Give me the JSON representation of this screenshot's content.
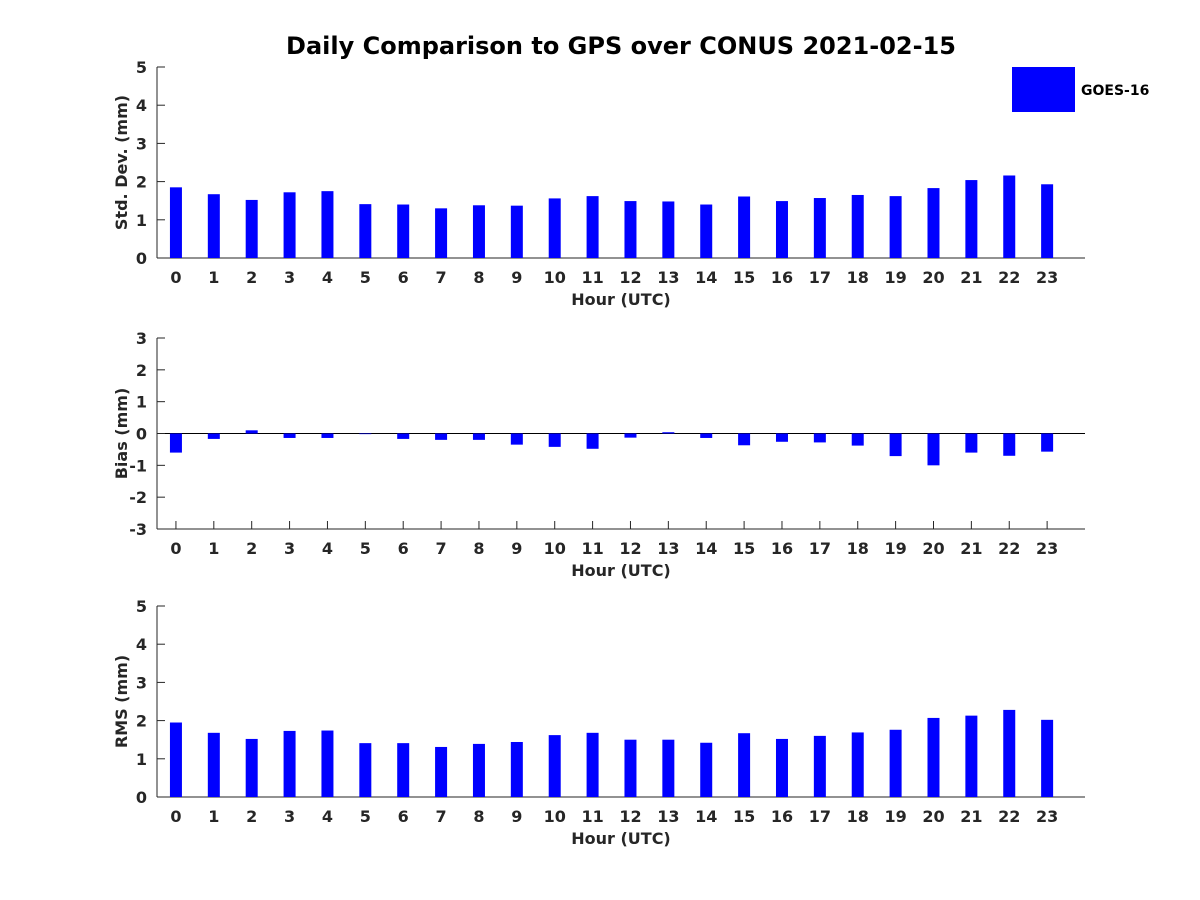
{
  "figure": {
    "title": "Daily Comparison to GPS over CONUS 2021-02-15"
  },
  "legend": {
    "label": "GOES-16",
    "color": "#0000ff",
    "placement": "top-right"
  },
  "chart_data": [
    {
      "type": "bar",
      "xlabel": "Hour (UTC)",
      "ylabel": "Std. Dev. (mm)",
      "ylim": [
        0,
        5
      ],
      "yticks": [
        0,
        1,
        2,
        3,
        4,
        5
      ],
      "categories": [
        "0",
        "1",
        "2",
        "3",
        "4",
        "5",
        "6",
        "7",
        "8",
        "9",
        "10",
        "11",
        "12",
        "13",
        "14",
        "15",
        "16",
        "17",
        "18",
        "19",
        "20",
        "21",
        "22",
        "23"
      ],
      "series": [
        {
          "name": "GOES-16",
          "values": [
            1.85,
            1.67,
            1.52,
            1.72,
            1.75,
            1.41,
            1.4,
            1.3,
            1.38,
            1.37,
            1.56,
            1.62,
            1.49,
            1.48,
            1.4,
            1.61,
            1.49,
            1.57,
            1.65,
            1.62,
            1.83,
            2.04,
            2.16,
            1.93
          ]
        }
      ]
    },
    {
      "type": "bar",
      "xlabel": "Hour (UTC)",
      "ylabel": "Bias (mm)",
      "ylim": [
        -3,
        3
      ],
      "yticks": [
        -3,
        -2,
        -1,
        0,
        1,
        2,
        3
      ],
      "zero_line": true,
      "categories": [
        "0",
        "1",
        "2",
        "3",
        "4",
        "5",
        "6",
        "7",
        "8",
        "9",
        "10",
        "11",
        "12",
        "13",
        "14",
        "15",
        "16",
        "17",
        "18",
        "19",
        "20",
        "21",
        "22",
        "23"
      ],
      "series": [
        {
          "name": "GOES-16",
          "values": [
            -0.6,
            -0.17,
            0.1,
            -0.14,
            -0.14,
            -0.02,
            -0.17,
            -0.2,
            -0.2,
            -0.35,
            -0.42,
            -0.48,
            -0.13,
            0.04,
            -0.14,
            -0.37,
            -0.26,
            -0.28,
            -0.38,
            -0.71,
            -1.0,
            -0.6,
            -0.7,
            -0.57
          ]
        }
      ]
    },
    {
      "type": "bar",
      "xlabel": "Hour (UTC)",
      "ylabel": "RMS (mm)",
      "ylim": [
        0,
        5
      ],
      "yticks": [
        0,
        1,
        2,
        3,
        4,
        5
      ],
      "categories": [
        "0",
        "1",
        "2",
        "3",
        "4",
        "5",
        "6",
        "7",
        "8",
        "9",
        "10",
        "11",
        "12",
        "13",
        "14",
        "15",
        "16",
        "17",
        "18",
        "19",
        "20",
        "21",
        "22",
        "23"
      ],
      "series": [
        {
          "name": "GOES-16",
          "values": [
            1.95,
            1.68,
            1.52,
            1.73,
            1.74,
            1.41,
            1.41,
            1.31,
            1.39,
            1.44,
            1.62,
            1.68,
            1.5,
            1.5,
            1.42,
            1.67,
            1.52,
            1.6,
            1.69,
            1.76,
            2.07,
            2.13,
            2.28,
            2.02
          ]
        }
      ]
    }
  ]
}
